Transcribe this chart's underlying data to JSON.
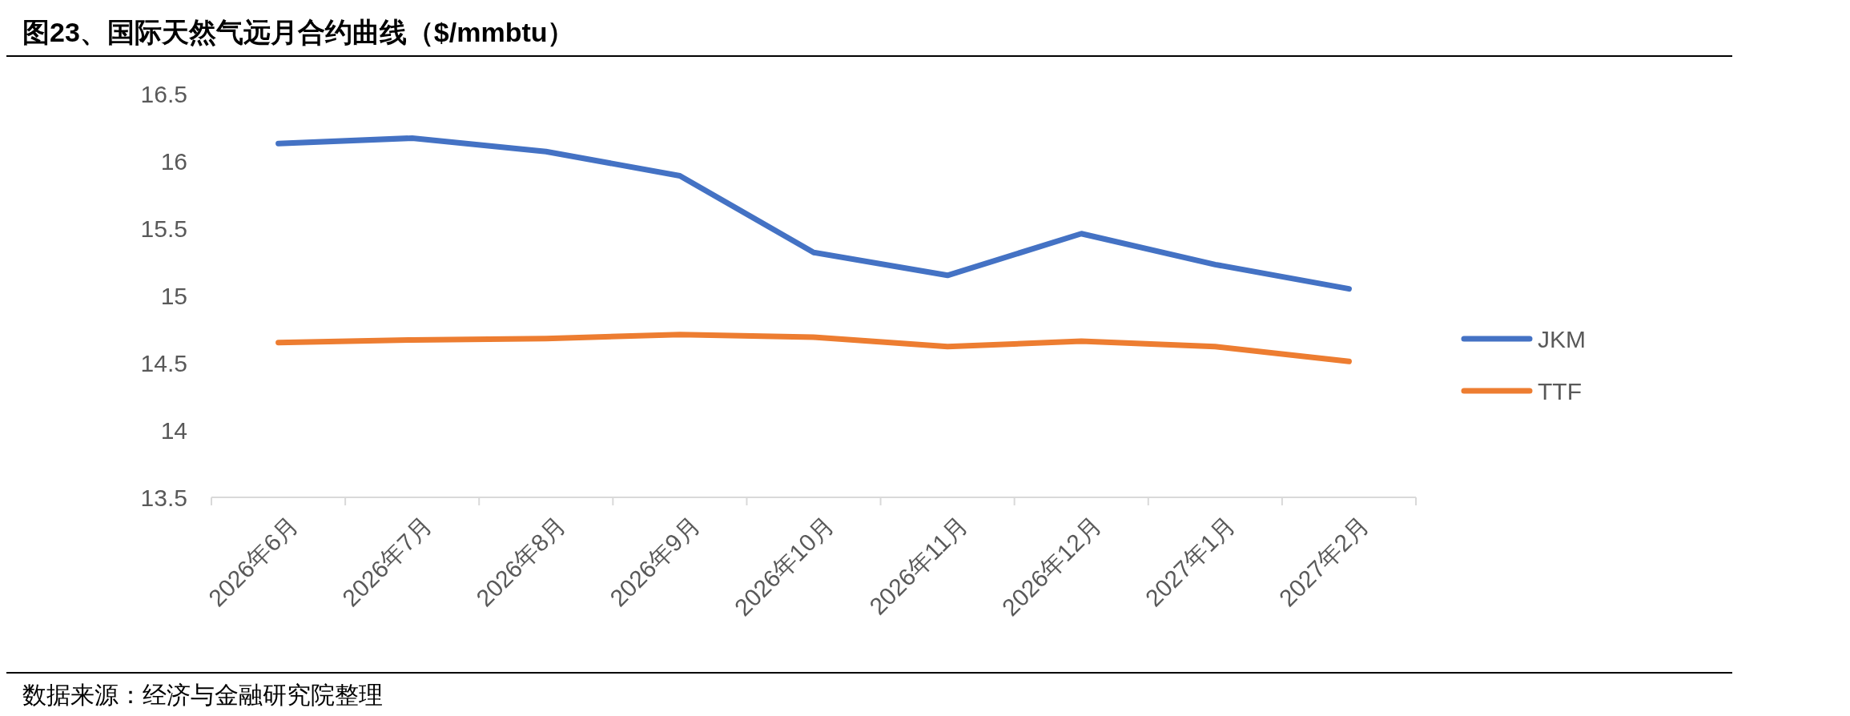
{
  "chart_data": {
    "type": "line",
    "title": "图23、国际天然气远月合约曲线（$/mmbtu）",
    "categories": [
      "2026年6月",
      "2026年7月",
      "2026年8月",
      "2026年9月",
      "2026年10月",
      "2026年11月",
      "2026年12月",
      "2027年1月",
      "2027年2月"
    ],
    "series": [
      {
        "name": "JKM",
        "color": "#4472c4",
        "values": [
          16.13,
          16.17,
          16.07,
          15.89,
          15.32,
          15.15,
          15.46,
          15.23,
          15.05
        ]
      },
      {
        "name": "TTF",
        "color": "#ed7d31",
        "values": [
          14.65,
          14.67,
          14.68,
          14.71,
          14.69,
          14.62,
          14.66,
          14.62,
          14.51
        ]
      }
    ],
    "ylim": [
      13.5,
      16.5
    ],
    "yticks": [
      13.5,
      14,
      14.5,
      15,
      15.5,
      16,
      16.5
    ],
    "grid": false,
    "legend": "right",
    "marker": "none",
    "line_style": "solid",
    "annotations": [
      "数据来源：经济与金融研究院整理"
    ]
  }
}
